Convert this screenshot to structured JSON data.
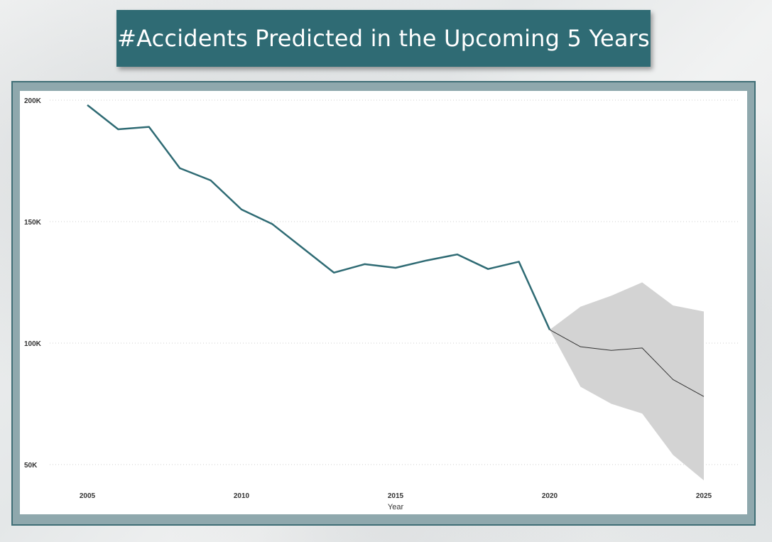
{
  "title": "#Accidents Predicted in the Upcoming 5 Years",
  "chart_data": {
    "type": "line",
    "title": "#Accidents Predicted in the Upcoming 5 Years",
    "xlabel": "Year",
    "ylabel": "",
    "xlim": [
      2005,
      2025
    ],
    "ylim": [
      40000,
      203000
    ],
    "grid": "horizontal dotted",
    "y_ticks": [
      {
        "value": 200000,
        "label": "200K"
      },
      {
        "value": 150000,
        "label": "150K"
      },
      {
        "value": 100000,
        "label": "100K"
      },
      {
        "value": 50000,
        "label": "50K"
      }
    ],
    "x_ticks": [
      {
        "value": 2005,
        "label": "2005"
      },
      {
        "value": 2010,
        "label": "2010"
      },
      {
        "value": 2015,
        "label": "2015"
      },
      {
        "value": 2020,
        "label": "2020"
      },
      {
        "value": 2025,
        "label": "2025"
      }
    ],
    "series": [
      {
        "role": "actual",
        "color": "#2f6b74",
        "points": [
          {
            "x": 2005,
            "y": 198000
          },
          {
            "x": 2006,
            "y": 188000
          },
          {
            "x": 2007,
            "y": 189000
          },
          {
            "x": 2008,
            "y": 172000
          },
          {
            "x": 2009,
            "y": 167000
          },
          {
            "x": 2010,
            "y": 155000
          },
          {
            "x": 2011,
            "y": 149000
          },
          {
            "x": 2012,
            "y": 139000
          },
          {
            "x": 2013,
            "y": 129000
          },
          {
            "x": 2014,
            "y": 132500
          },
          {
            "x": 2015,
            "y": 131000
          },
          {
            "x": 2016,
            "y": 134000
          },
          {
            "x": 2017,
            "y": 136500
          },
          {
            "x": 2018,
            "y": 130500
          },
          {
            "x": 2019,
            "y": 133500
          },
          {
            "x": 2020,
            "y": 105500
          }
        ]
      },
      {
        "role": "forecast",
        "color": "#333333",
        "band_color": "#d3d3d3",
        "points": [
          {
            "x": 2020,
            "y": 105500,
            "lower": 105500,
            "upper": 105500
          },
          {
            "x": 2021,
            "y": 98500,
            "lower": 82000,
            "upper": 115000
          },
          {
            "x": 2022,
            "y": 97000,
            "lower": 75000,
            "upper": 119500
          },
          {
            "x": 2023,
            "y": 98000,
            "lower": 71000,
            "upper": 125000
          },
          {
            "x": 2024,
            "y": 85000,
            "lower": 54000,
            "upper": 115500
          },
          {
            "x": 2025,
            "y": 78000,
            "lower": 43500,
            "upper": 113000
          }
        ]
      }
    ]
  }
}
